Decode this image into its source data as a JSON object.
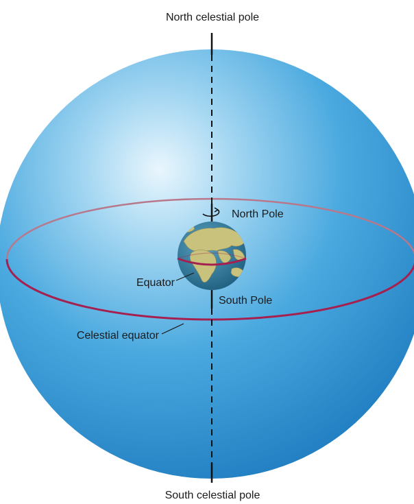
{
  "labels": {
    "north_celestial_pole": "North celestial pole",
    "south_celestial_pole": "South celestial pole",
    "north_pole": "North Pole",
    "south_pole": "South Pole",
    "equator": "Equator",
    "celestial_equator": "Celestial equator"
  },
  "colors": {
    "celestial_sphere": "#3fa3dc",
    "celestial_equator": "#a5204f",
    "earth_ocean": "#2f7a9b",
    "earth_land": "#c8c07a",
    "axis": "#111111"
  }
}
